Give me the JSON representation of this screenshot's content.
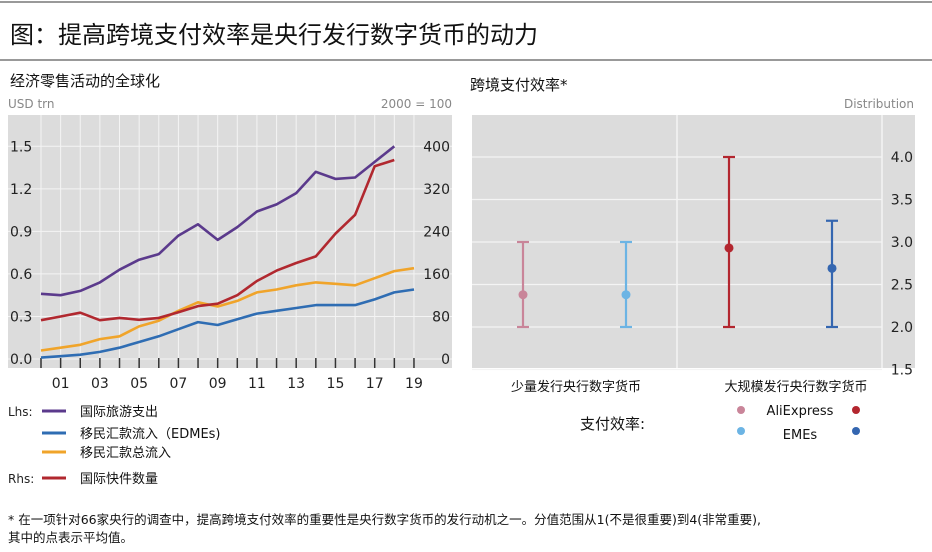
{
  "title": "图：提高跨境支付效率是央行发行数字货币的动力",
  "colors": {
    "purple": "#5b3a8c",
    "blue": "#2f6db3",
    "orange": "#f0a42a",
    "red": "#b1282f",
    "pink": "#c98599",
    "lightblue": "#6cb4e4",
    "darkred": "#b3262f",
    "darkblue": "#3466b0",
    "panel": "#dcdcdc"
  },
  "chart_data": [
    {
      "type": "line",
      "title": "经济零售活动的全球化",
      "ylabel_left": "USD trn",
      "ylabel_right": "2000 = 100",
      "x_ticks": [
        "01",
        "03",
        "05",
        "07",
        "09",
        "11",
        "13",
        "15",
        "17",
        "19"
      ],
      "y_ticks_left": [
        "0.0",
        "0.3",
        "0.6",
        "0.9",
        "1.2",
        "1.5"
      ],
      "y_ticks_right": [
        "0",
        "80",
        "160",
        "240",
        "320",
        "400"
      ],
      "ylim_left": [
        0,
        1.72
      ],
      "ylim_right": [
        0,
        458
      ],
      "grid": true,
      "x": [
        2000,
        2001,
        2002,
        2003,
        2004,
        2005,
        2006,
        2007,
        2008,
        2009,
        2010,
        2011,
        2012,
        2013,
        2014,
        2015,
        2016,
        2017,
        2018,
        2019
      ],
      "legend_prefix_lhs": "Lhs:",
      "legend_prefix_rhs": "Rhs:",
      "series": [
        {
          "name": "国际旅游支出",
          "axis": "left",
          "color": "#5b3a8c",
          "values": [
            0.46,
            0.45,
            0.48,
            0.54,
            0.63,
            0.7,
            0.74,
            0.87,
            0.95,
            0.84,
            0.93,
            1.04,
            1.09,
            1.17,
            1.32,
            1.27,
            1.28,
            1.39,
            1.5,
            null
          ]
        },
        {
          "name": "移民汇款流入（EDMEs)",
          "axis": "left",
          "color": "#2f6db3",
          "values": [
            0.01,
            0.02,
            0.03,
            0.05,
            0.08,
            0.12,
            0.16,
            0.21,
            0.26,
            0.24,
            0.28,
            0.32,
            0.34,
            0.36,
            0.38,
            0.38,
            0.38,
            0.42,
            0.47,
            0.49
          ]
        },
        {
          "name": "移民汇款总流入",
          "axis": "left",
          "color": "#f0a42a",
          "values": [
            0.06,
            0.08,
            0.1,
            0.14,
            0.16,
            0.23,
            0.27,
            0.34,
            0.4,
            0.37,
            0.41,
            0.47,
            0.49,
            0.52,
            0.54,
            0.53,
            0.52,
            0.57,
            0.62,
            0.64
          ]
        },
        {
          "name": "国际快件数量",
          "axis": "right",
          "color": "#b1282f",
          "values": [
            82,
            90,
            98,
            82,
            87,
            83,
            87,
            99,
            112,
            117,
            135,
            165,
            187,
            203,
            217,
            265,
            305,
            408,
            421,
            null
          ]
        }
      ]
    },
    {
      "type": "scatter",
      "title": "跨境支付效率*",
      "ylabel_right": "Distribution",
      "ylim": [
        1.5,
        4.5
      ],
      "y_ticks": [
        "1.5",
        "2.0",
        "2.5",
        "3.0",
        "3.5",
        "4.0"
      ],
      "categories": [
        "少量发行央行数字货币",
        "大规模发行央行数字货币"
      ],
      "legend_title": "支付效率:",
      "legend_items": [
        "AliExpress",
        "EMEs"
      ],
      "points": [
        {
          "group": "少量发行央行数字货币",
          "series": "AliExpress",
          "color": "#c98599",
          "mean": 2.38,
          "low": 2.0,
          "high": 3.0
        },
        {
          "group": "少量发行央行数字货币",
          "series": "EMEs",
          "color": "#6cb4e4",
          "mean": 2.38,
          "low": 2.0,
          "high": 3.0
        },
        {
          "group": "大规模发行央行数字货币",
          "series": "AliExpress",
          "color": "#b3262f",
          "mean": 2.93,
          "low": 2.0,
          "high": 4.0
        },
        {
          "group": "大规模发行央行数字货币",
          "series": "EMEs",
          "color": "#3466b0",
          "mean": 2.69,
          "low": 2.0,
          "high": 3.25
        }
      ]
    }
  ],
  "footnote": [
    "* 在一项针对66家央行的调查中，提高跨境支付效率的重要性是央行数字货币的发行动机之一。分值范围从1(不是很重要)到4(非常重要),",
    "其中的点表示平均值。"
  ]
}
